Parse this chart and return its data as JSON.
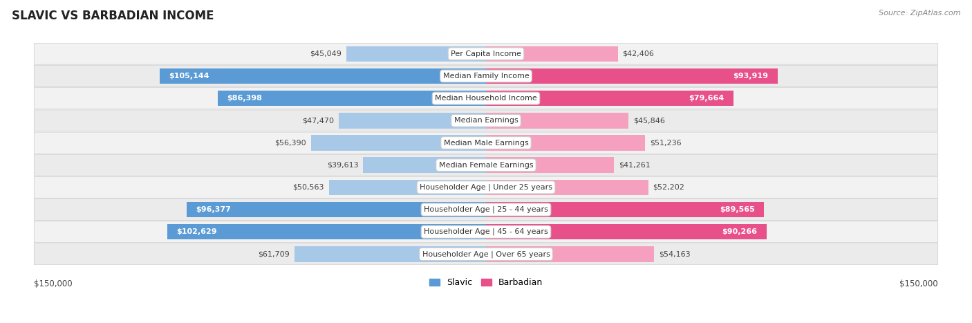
{
  "title": "SLAVIC VS BARBADIAN INCOME",
  "source": "Source: ZipAtlas.com",
  "categories": [
    "Per Capita Income",
    "Median Family Income",
    "Median Household Income",
    "Median Earnings",
    "Median Male Earnings",
    "Median Female Earnings",
    "Householder Age | Under 25 years",
    "Householder Age | 25 - 44 years",
    "Householder Age | 45 - 64 years",
    "Householder Age | Over 65 years"
  ],
  "slavic_values": [
    45049,
    105144,
    86398,
    47470,
    56390,
    39613,
    50563,
    96377,
    102629,
    61709
  ],
  "barbadian_values": [
    42406,
    93919,
    79664,
    45846,
    51236,
    41261,
    52202,
    89565,
    90266,
    54163
  ],
  "slavic_labels": [
    "$45,049",
    "$105,144",
    "$86,398",
    "$47,470",
    "$56,390",
    "$39,613",
    "$50,563",
    "$96,377",
    "$102,629",
    "$61,709"
  ],
  "barbadian_labels": [
    "$42,406",
    "$93,919",
    "$79,664",
    "$45,846",
    "$51,236",
    "$41,261",
    "$52,202",
    "$89,565",
    "$90,266",
    "$54,163"
  ],
  "slavic_color_light": "#a8c8e8",
  "slavic_color_dark": "#5b9bd5",
  "barbadian_color_light": "#f4a0be",
  "barbadian_color_dark": "#e8508a",
  "slavic_dark_threshold": 80000,
  "barbadian_dark_threshold": 75000,
  "max_value": 150000,
  "bg_color": "#ffffff",
  "row_colors": [
    "#f2f2f2",
    "#ebebeb"
  ],
  "title_fontsize": 12,
  "label_fontsize": 8,
  "category_fontsize": 8,
  "axis_label": "$150,000",
  "legend_slavic": "Slavic",
  "legend_barbadian": "Barbadian"
}
